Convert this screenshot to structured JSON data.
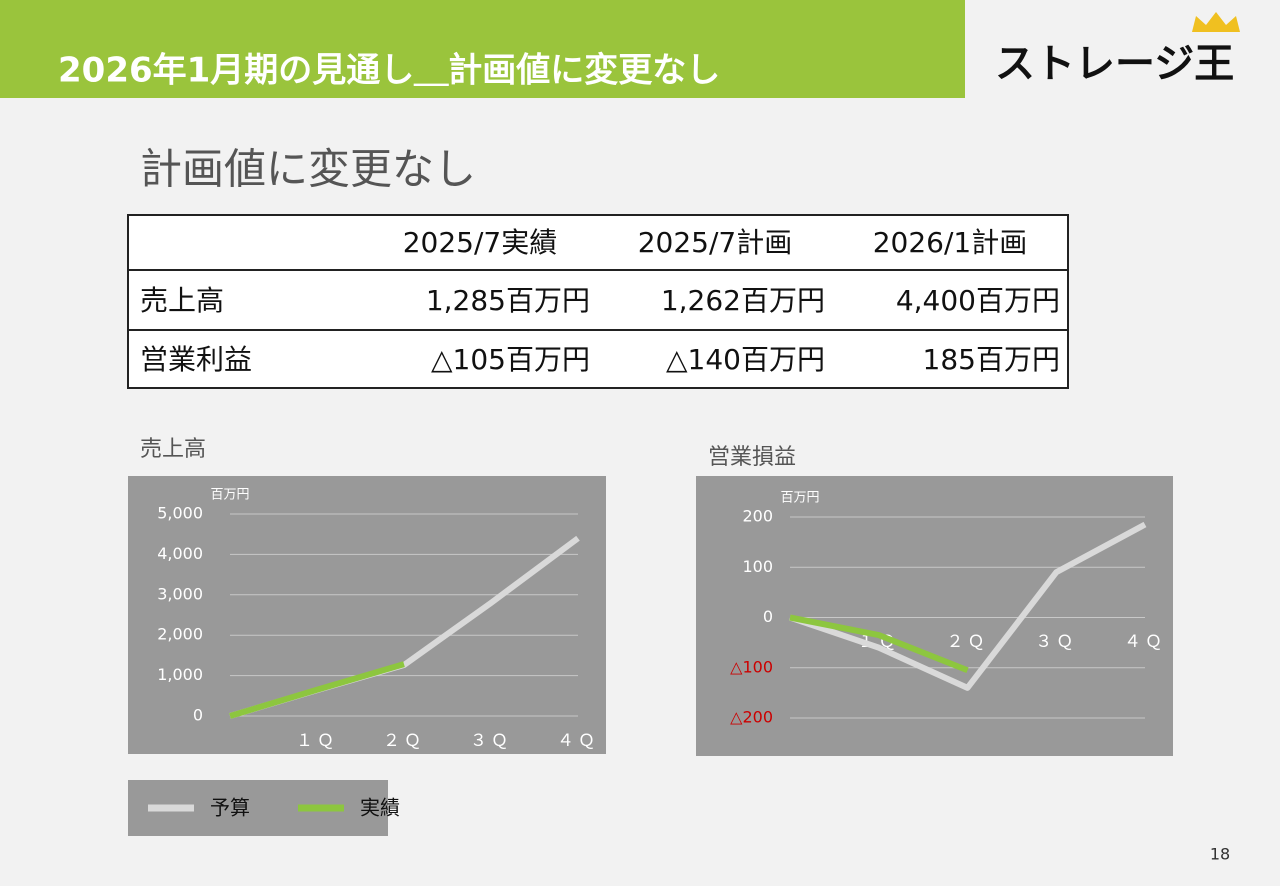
{
  "header": {
    "title": "2026年1月期の見通し＿計画値に変更なし",
    "logo": "ストレージ王"
  },
  "subtitle": "計画値に変更なし",
  "table": {
    "columns": [
      "2025/7実績",
      "2025/7計画",
      "2026/1計画"
    ],
    "rows": [
      [
        "売上高",
        "1,285百万円",
        "1,262百万円",
        "4,400百万円"
      ],
      [
        "営業利益",
        "△105百万円",
        "△140百万円",
        "185百万円"
      ]
    ]
  },
  "chart_data": [
    {
      "type": "line",
      "title": "売上高",
      "unit": "百万円",
      "categories": [
        null,
        "１Ｑ",
        "２Ｑ",
        "３Ｑ",
        "４Ｑ"
      ],
      "series": [
        {
          "name": "予算",
          "color": "#d9d9d9",
          "values": [
            0,
            640,
            1262,
            2800,
            4400
          ]
        },
        {
          "name": "実績",
          "color": "#8dc63f",
          "values": [
            0,
            650,
            1285,
            null,
            null
          ]
        }
      ],
      "ylim": [
        0,
        5000
      ],
      "yticks": [
        0,
        {
          "value": 1000,
          "label": "1,000"
        },
        {
          "value": 2000,
          "label": "2,000"
        },
        {
          "value": 3000,
          "label": "3,000"
        },
        {
          "value": 4000,
          "label": "4,000"
        },
        {
          "value": 5000,
          "label": "5,000"
        }
      ],
      "grid": true
    },
    {
      "type": "line",
      "title": "営業損益",
      "unit": "百万円",
      "categories": [
        null,
        "１Ｑ",
        "２Ｑ",
        "３Ｑ",
        "４Ｑ"
      ],
      "series": [
        {
          "color": "#d9d9d9",
          "values": [
            0,
            -60,
            -140,
            90,
            185
          ]
        },
        {
          "color": "#8dc63f",
          "values": [
            0,
            -35,
            -105,
            null,
            null
          ]
        }
      ],
      "ylim": [
        -200,
        200
      ],
      "yticks": [
        {
          "value": -200,
          "label": "△200"
        },
        {
          "value": -100,
          "label": "△100"
        },
        0,
        100,
        200
      ],
      "negative_tick_color": "#cc0000",
      "grid": true
    }
  ],
  "page_number": "18"
}
